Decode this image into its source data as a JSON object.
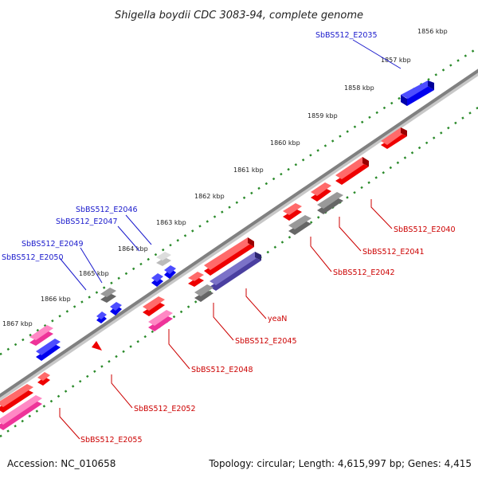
{
  "title": "Shigella boydii CDC 3083-94, complete genome",
  "footer": {
    "accession": "Accession: NC_010658",
    "summary": "Topology: circular; Length: 4,615,997 bp; Genes: 4,415"
  },
  "ticks": [
    "1856 kbp",
    "1857 kbp",
    "1858 kbp",
    "1859 kbp",
    "1860 kbp",
    "1861 kbp",
    "1862 kbp",
    "1863 kbp",
    "1864 kbp",
    "1865 kbp",
    "1866 kbp",
    "1867 kbp"
  ],
  "gene_labels_upper": [
    "SbBS512_E2035",
    "SbBS512_E2046",
    "SbBS512_E2047",
    "SbBS512_E2049",
    "SbBS512_E2050"
  ],
  "gene_labels_lower": [
    "SbBS512_E2040",
    "SbBS512_E2041",
    "SbBS512_E2042",
    "yeaN",
    "SbBS512_E2045",
    "SbBS512_E2048",
    "SbBS512_E2052",
    "SbBS512_E2055"
  ],
  "colors": {
    "backbone": "#808080",
    "forward_gene": "#0000ee",
    "reverse_gene": "#ee0000",
    "pseudo_gene": "#666666",
    "rna_gene": "#ee3399",
    "other_gene": "#4a3fa0",
    "tick_mark": "#2a8a2a",
    "label_blue": "#1a1acc",
    "label_red": "#cc0000"
  }
}
